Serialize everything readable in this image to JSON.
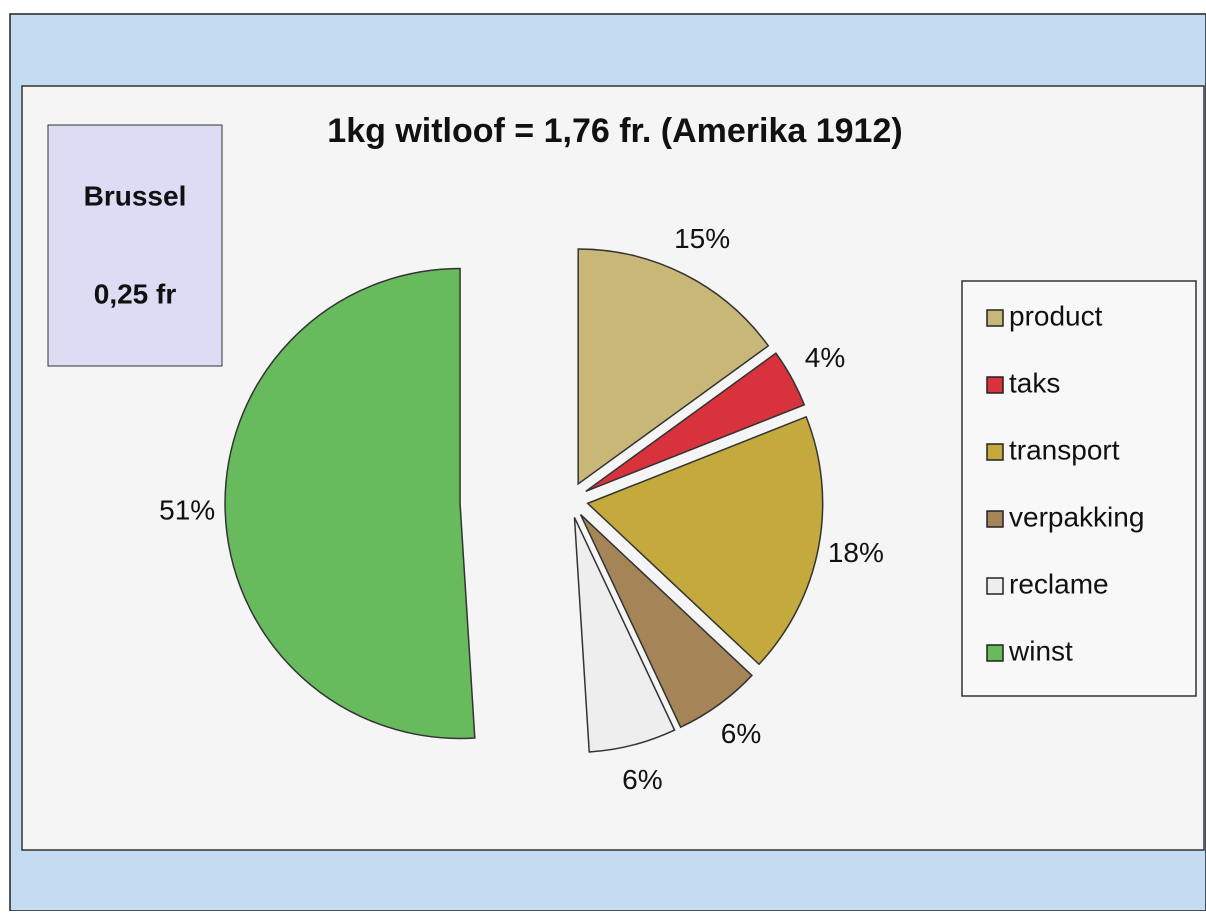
{
  "chart_data": {
    "type": "pie",
    "title": "1kg witloof = 1,76 fr. (Amerika 1912)",
    "categories": [
      "product",
      "taks",
      "transport",
      "verpakking",
      "reclame",
      "winst"
    ],
    "values": [
      15,
      4,
      18,
      6,
      6,
      51
    ],
    "value_labels": [
      "15%",
      "4%",
      "18%",
      "6%",
      "6%",
      "51%"
    ],
    "colors": [
      "#c9b777",
      "#d8323c",
      "#c4a93c",
      "#a58457",
      "#eeeeee",
      "#68bb5c"
    ],
    "annotation": [
      "Brussel",
      "0,25 fr"
    ],
    "legend": "right"
  }
}
